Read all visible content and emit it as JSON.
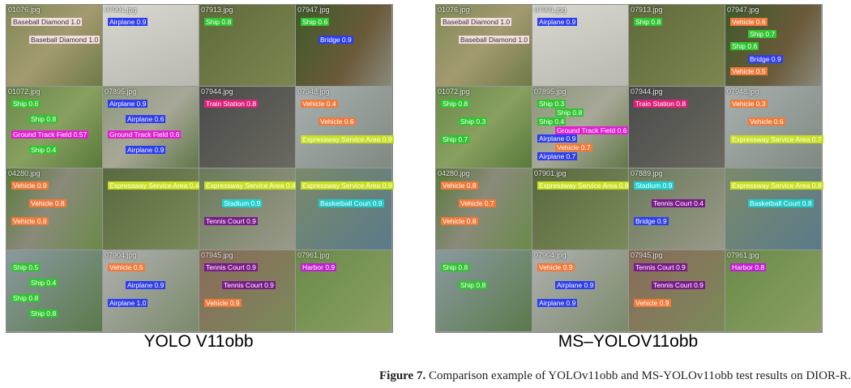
{
  "panels": [
    {
      "caption": "YOLO V11obb",
      "tiles": [
        {
          "file": "01076.jpg",
          "labels": [
            {
              "text": "Baseball Diamond 1.0",
              "color": "#f3dede"
            },
            {
              "text": "Baseball Diamond 1.0",
              "color": "#f3dede"
            }
          ]
        },
        {
          "file": "07901.jpg",
          "labels": [
            {
              "text": "Airplane 0.9",
              "color": "#2d3df0"
            }
          ]
        },
        {
          "file": "07913.jpg",
          "labels": [
            {
              "text": "Ship 0.8",
              "color": "#2fc52f"
            }
          ]
        },
        {
          "file": "07947.jpg",
          "labels": [
            {
              "text": "Ship 0.6",
              "color": "#2fc52f"
            },
            {
              "text": "Bridge 0.9",
              "color": "#2d3df0"
            }
          ]
        },
        {
          "file": "01072.jpg",
          "labels": [
            {
              "text": "Ship 0.6",
              "color": "#2fc52f"
            },
            {
              "text": "Ship 0.8",
              "color": "#2fc52f"
            },
            {
              "text": "Ground Track Field 0.57",
              "color": "#e020d0"
            },
            {
              "text": "Ship 0.4",
              "color": "#2fc52f"
            }
          ]
        },
        {
          "file": "07895.jpg",
          "labels": [
            {
              "text": "Airplane 0.9",
              "color": "#2d3df0"
            },
            {
              "text": "Airplane 0.6",
              "color": "#2d3df0"
            },
            {
              "text": "Ground Track Field 0.6",
              "color": "#e020d0"
            },
            {
              "text": "Airplane 0.9",
              "color": "#2d3df0"
            }
          ]
        },
        {
          "file": "07944.jpg",
          "labels": [
            {
              "text": "Train Station 0.8",
              "color": "#e0207a"
            }
          ]
        },
        {
          "file": "07948.jpg",
          "labels": [
            {
              "text": "Vehicle 0.4",
              "color": "#f07a3a"
            },
            {
              "text": "Vehicle 0.6",
              "color": "#f07a3a"
            },
            {
              "text": "Expressway Service Area 0.9",
              "color": "#c8e020"
            }
          ]
        },
        {
          "file": "04280.jpg",
          "labels": [
            {
              "text": "Vehicle 0.9",
              "color": "#f07a3a"
            },
            {
              "text": "Vehicle 0.8",
              "color": "#f07a3a"
            },
            {
              "text": "Vehicle 0.8",
              "color": "#f07a3a"
            }
          ]
        },
        {
          "labels": [
            {
              "text": "Expressway Service Area 0.4",
              "color": "#c8e020"
            }
          ]
        },
        {
          "labels": [
            {
              "text": "Expressway Service Area 0.4",
              "color": "#c8e020"
            },
            {
              "text": "Stadium 0.9",
              "color": "#20d0d0"
            },
            {
              "text": "Tennis Court 0.9",
              "color": "#7a1a8a"
            }
          ]
        },
        {
          "labels": [
            {
              "text": "Expressway Service Area 0.9",
              "color": "#c8e020"
            },
            {
              "text": "Basketball Court 0.9",
              "color": "#20c8c8"
            }
          ]
        },
        {
          "labels": [
            {
              "text": "Ship 0.5",
              "color": "#2fc52f"
            },
            {
              "text": "Ship 0.4",
              "color": "#2fc52f"
            },
            {
              "text": "Ship 0.8",
              "color": "#2fc52f"
            },
            {
              "text": "Ship 0.8",
              "color": "#2fc52f"
            }
          ]
        },
        {
          "file": "07904.jpg",
          "labels": [
            {
              "text": "Vehicle 0.5",
              "color": "#f07a3a"
            },
            {
              "text": "Airplane 0.9",
              "color": "#2d3df0"
            },
            {
              "text": "Airplane 1.0",
              "color": "#2d3df0"
            }
          ]
        },
        {
          "file": "07945.jpg",
          "labels": [
            {
              "text": "Tennis Court 0.9",
              "color": "#7a1a8a"
            },
            {
              "text": "Tennis Court 0.9",
              "color": "#7a1a8a"
            },
            {
              "text": "Vehicle 0.9",
              "color": "#f07a3a"
            }
          ]
        },
        {
          "file": "07961.jpg",
          "labels": [
            {
              "text": "Harbor 0.9",
              "color": "#c020d0"
            }
          ]
        }
      ]
    },
    {
      "caption": "MS–YOLOV11obb",
      "tiles": [
        {
          "file": "01076.jpg",
          "labels": [
            {
              "text": "Baseball Diamond 1.0",
              "color": "#f3dede"
            },
            {
              "text": "Baseball Diamond 1.0",
              "color": "#f3dede"
            }
          ]
        },
        {
          "file": "07901.jpg",
          "labels": [
            {
              "text": "Airplane 0.9",
              "color": "#2d3df0"
            }
          ]
        },
        {
          "file": "07913.jpg",
          "labels": [
            {
              "text": "Ship 0.8",
              "color": "#2fc52f"
            }
          ]
        },
        {
          "file": "07947.jpg",
          "labels": [
            {
              "text": "Vehicle 0.6",
              "color": "#f07a3a"
            },
            {
              "text": "Ship 0.7",
              "color": "#2fc52f"
            },
            {
              "text": "Ship 0.6",
              "color": "#2fc52f"
            },
            {
              "text": "Bridge 0.9",
              "color": "#2d3df0"
            },
            {
              "text": "Vehicle 0.5",
              "color": "#f07a3a"
            }
          ]
        },
        {
          "file": "01072.jpg",
          "labels": [
            {
              "text": "Ship 0.8",
              "color": "#2fc52f"
            },
            {
              "text": "Ship 0.3",
              "color": "#2fc52f"
            },
            {
              "text": "Ship 0.7",
              "color": "#2fc52f"
            }
          ]
        },
        {
          "file": "07895.jpg",
          "labels": [
            {
              "text": "Ship 0.3",
              "color": "#2fc52f"
            },
            {
              "text": "Ship 0.8",
              "color": "#2fc52f"
            },
            {
              "text": "Ship 0.4",
              "color": "#2fc52f"
            },
            {
              "text": "Ground Track Field 0.6",
              "color": "#e020d0"
            },
            {
              "text": "Airplane 0.9",
              "color": "#2d3df0"
            },
            {
              "text": "Vehicle 0.7",
              "color": "#f07a3a"
            },
            {
              "text": "Airplane 0.7",
              "color": "#2d3df0"
            }
          ]
        },
        {
          "file": "07944.jpg",
          "labels": [
            {
              "text": "Train Station 0.8",
              "color": "#e0207a"
            }
          ]
        },
        {
          "file": "07948.jpg",
          "labels": [
            {
              "text": "Vehicle 0.3",
              "color": "#f07a3a"
            },
            {
              "text": "Vehicle 0.6",
              "color": "#f07a3a"
            },
            {
              "text": "Expressway Service Area 0.7",
              "color": "#c8e020"
            }
          ]
        },
        {
          "file": "04280.jpg",
          "labels": [
            {
              "text": "Vehicle 0.8",
              "color": "#f07a3a"
            },
            {
              "text": "Vehicle 0.7",
              "color": "#f07a3a"
            },
            {
              "text": "Vehicle 0.8",
              "color": "#f07a3a"
            }
          ]
        },
        {
          "file": "07901.jpg",
          "labels": [
            {
              "text": "Expressway Service Area 0.8",
              "color": "#c8e020"
            }
          ]
        },
        {
          "file": "07889.jpg",
          "labels": [
            {
              "text": "Stadium 0.9",
              "color": "#20d0d0"
            },
            {
              "text": "Tennis Court 0.4",
              "color": "#7a1a8a"
            },
            {
              "text": "Bridge 0.9",
              "color": "#2d3df0"
            }
          ]
        },
        {
          "labels": [
            {
              "text": "Expressway Service Area 0.8",
              "color": "#c8e020"
            },
            {
              "text": "Basketball Court 0.8",
              "color": "#20c8c8"
            }
          ]
        },
        {
          "labels": [
            {
              "text": "Ship 0.8",
              "color": "#2fc52f"
            },
            {
              "text": "Ship 0.8",
              "color": "#2fc52f"
            }
          ]
        },
        {
          "file": "07904.jpg",
          "labels": [
            {
              "text": "Vehicle 0.9",
              "color": "#f07a3a"
            },
            {
              "text": "Airplane 0.9",
              "color": "#2d3df0"
            },
            {
              "text": "Airplane 0.9",
              "color": "#2d3df0"
            }
          ]
        },
        {
          "file": "07945.jpg",
          "labels": [
            {
              "text": "Tennis Court 0.9",
              "color": "#7a1a8a"
            },
            {
              "text": "Tennis Court 0.9",
              "color": "#7a1a8a"
            },
            {
              "text": "Vehicle 0.9",
              "color": "#f07a3a"
            }
          ]
        },
        {
          "file": "07961.jpg",
          "labels": [
            {
              "text": "Harbor 0.8",
              "color": "#c020d0"
            }
          ]
        }
      ]
    }
  ],
  "figure_caption": {
    "label": "Figure 7.",
    "text": "Comparison example of YOLOv11obb and MS-YOLOv11obb test results on DIOR-R."
  }
}
